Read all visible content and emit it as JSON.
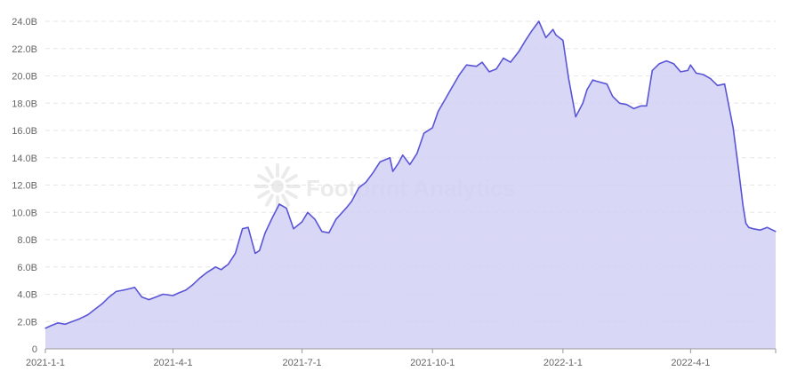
{
  "chart_data": {
    "type": "area",
    "title": "",
    "xlabel": "",
    "ylabel": "",
    "ylim": [
      0,
      24000000000
    ],
    "xlim": [
      "2021-01-01",
      "2022-05-31"
    ],
    "grid": "horizontal-dashed",
    "legend": "none",
    "y_ticks": [
      0,
      2000000000,
      4000000000,
      6000000000,
      8000000000,
      10000000000,
      12000000000,
      14000000000,
      16000000000,
      18000000000,
      20000000000,
      22000000000,
      24000000000
    ],
    "y_tick_labels": [
      "0",
      "2.0B",
      "4.0B",
      "6.0B",
      "8.0B",
      "10.0B",
      "12.0B",
      "14.0B",
      "16.0B",
      "18.0B",
      "20.0B",
      "22.0B",
      "24.0B"
    ],
    "x_ticks": [
      "2021-01-01",
      "2021-04-01",
      "2021-07-01",
      "2021-10-01",
      "2022-01-01",
      "2022-04-01"
    ],
    "x_tick_labels": [
      "2021-1-1",
      "2021-4-1",
      "2021-7-1",
      "2021-10-1",
      "2022-1-1",
      "2022-4-1"
    ],
    "watermark": "Footprint Analytics",
    "colors": {
      "fill": "#d2d0f5",
      "line": "#5a55d6",
      "grid": "#e6e6e6",
      "axis": "#999999",
      "tick_text": "#666666"
    },
    "series": [
      {
        "x": [
          "2021-01-01",
          "2021-01-05",
          "2021-01-10",
          "2021-01-15",
          "2021-01-20",
          "2021-01-25",
          "2021-01-31",
          "2021-02-05",
          "2021-02-10",
          "2021-02-15",
          "2021-02-20",
          "2021-02-25",
          "2021-03-01",
          "2021-03-05",
          "2021-03-10",
          "2021-03-15",
          "2021-03-20",
          "2021-03-25",
          "2021-04-01",
          "2021-04-05",
          "2021-04-10",
          "2021-04-15",
          "2021-04-20",
          "2021-04-25",
          "2021-05-01",
          "2021-05-05",
          "2021-05-10",
          "2021-05-15",
          "2021-05-20",
          "2021-05-24",
          "2021-05-29",
          "2021-06-01",
          "2021-06-05",
          "2021-06-10",
          "2021-06-15",
          "2021-06-20",
          "2021-06-25",
          "2021-07-01",
          "2021-07-05",
          "2021-07-10",
          "2021-07-15",
          "2021-07-20",
          "2021-07-25",
          "2021-08-01",
          "2021-08-05",
          "2021-08-10",
          "2021-08-15",
          "2021-08-20",
          "2021-08-25",
          "2021-09-01",
          "2021-09-03",
          "2021-09-07",
          "2021-09-10",
          "2021-09-15",
          "2021-09-20",
          "2021-09-25",
          "2021-10-01",
          "2021-10-05",
          "2021-10-10",
          "2021-10-15",
          "2021-10-20",
          "2021-10-25",
          "2021-11-01",
          "2021-11-05",
          "2021-11-10",
          "2021-11-15",
          "2021-11-20",
          "2021-11-25",
          "2021-12-01",
          "2021-12-05",
          "2021-12-10",
          "2021-12-15",
          "2021-12-20",
          "2021-12-25",
          "2021-12-27",
          "2022-01-01",
          "2022-01-05",
          "2022-01-10",
          "2022-01-15",
          "2022-01-18",
          "2022-01-22",
          "2022-01-25",
          "2022-02-01",
          "2022-02-05",
          "2022-02-10",
          "2022-02-15",
          "2022-02-20",
          "2022-02-25",
          "2022-03-01",
          "2022-03-05",
          "2022-03-10",
          "2022-03-15",
          "2022-03-20",
          "2022-03-25",
          "2022-03-30",
          "2022-04-01",
          "2022-04-05",
          "2022-04-10",
          "2022-04-15",
          "2022-04-20",
          "2022-04-25",
          "2022-05-01",
          "2022-05-05",
          "2022-05-08",
          "2022-05-10",
          "2022-05-12",
          "2022-05-15",
          "2022-05-20",
          "2022-05-25",
          "2022-05-31"
        ],
        "values": [
          1500000000,
          1700000000,
          1900000000,
          1800000000,
          2000000000,
          2200000000,
          2500000000,
          2900000000,
          3300000000,
          3800000000,
          4200000000,
          4300000000,
          4400000000,
          4500000000,
          3800000000,
          3600000000,
          3800000000,
          4000000000,
          3900000000,
          4100000000,
          4300000000,
          4700000000,
          5200000000,
          5600000000,
          6000000000,
          5800000000,
          6200000000,
          7000000000,
          8800000000,
          8900000000,
          7000000000,
          7200000000,
          8500000000,
          9600000000,
          10600000000,
          10300000000,
          8800000000,
          9300000000,
          10000000000,
          9500000000,
          8600000000,
          8500000000,
          9500000000,
          10300000000,
          10800000000,
          11800000000,
          12200000000,
          12900000000,
          13700000000,
          14000000000,
          13000000000,
          13600000000,
          14200000000,
          13500000000,
          14300000000,
          15800000000,
          16200000000,
          17400000000,
          18300000000,
          19200000000,
          20100000000,
          20800000000,
          20700000000,
          21000000000,
          20300000000,
          20500000000,
          21300000000,
          21000000000,
          21800000000,
          22500000000,
          23300000000,
          24000000000,
          22800000000,
          23400000000,
          23000000000,
          22600000000,
          19800000000,
          17000000000,
          18000000000,
          19000000000,
          19700000000,
          19600000000,
          19400000000,
          18500000000,
          18000000000,
          17900000000,
          17600000000,
          17800000000,
          17800000000,
          20400000000,
          20900000000,
          21100000000,
          20900000000,
          20300000000,
          20400000000,
          20800000000,
          20200000000,
          20100000000,
          19800000000,
          19300000000,
          19400000000,
          16200000000,
          13000000000,
          10500000000,
          9200000000,
          8900000000,
          8800000000,
          8700000000,
          8900000000,
          8600000000
        ]
      }
    ]
  }
}
